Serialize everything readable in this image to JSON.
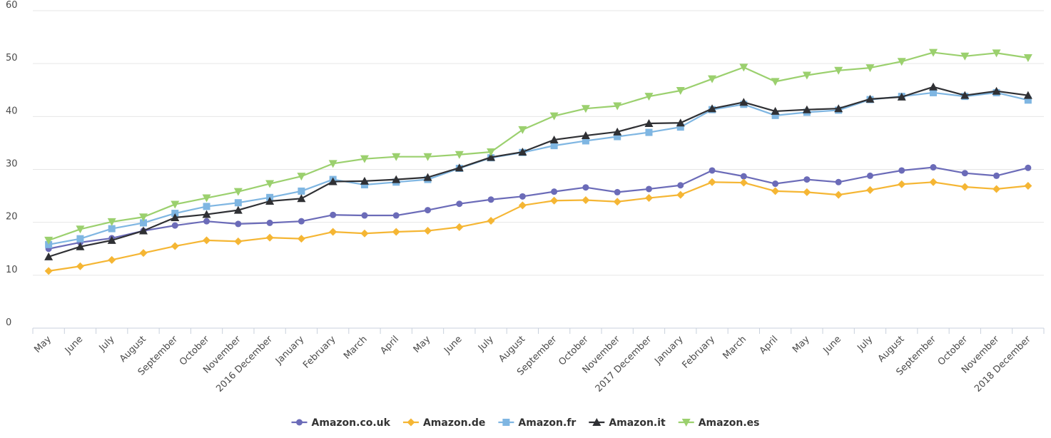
{
  "chart_data": {
    "type": "line",
    "title": "",
    "xlabel": "",
    "ylabel": "",
    "ylim": [
      0,
      60
    ],
    "yticks": [
      0,
      10,
      20,
      30,
      40,
      50,
      60
    ],
    "grid": true,
    "legend_position": "bottom",
    "categories": [
      "May",
      "June",
      "July",
      "August",
      "September",
      "October",
      "November",
      "2016 December",
      "January",
      "February",
      "March",
      "April",
      "May",
      "June",
      "July",
      "August",
      "September",
      "October",
      "November",
      "2017 December",
      "January",
      "February",
      "March",
      "April",
      "May",
      "June",
      "July",
      "August",
      "September",
      "October",
      "November",
      "2018 December"
    ],
    "series": [
      {
        "name": "Amazon.co.uk",
        "color": "#6b6bb8",
        "marker": "circle",
        "values": [
          15.0,
          16.2,
          17.0,
          18.4,
          19.4,
          20.2,
          19.7,
          19.9,
          20.2,
          21.4,
          21.3,
          21.3,
          22.3,
          23.5,
          24.3,
          24.9,
          25.8,
          26.6,
          25.7,
          26.3,
          27.0,
          29.8,
          28.7,
          27.3,
          28.1,
          27.6,
          28.8,
          29.8,
          30.4,
          29.3,
          28.8,
          30.3
        ]
      },
      {
        "name": "Amazon.de",
        "color": "#f5b634",
        "marker": "diamond",
        "values": [
          10.8,
          11.7,
          12.9,
          14.2,
          15.5,
          16.6,
          16.4,
          17.1,
          16.9,
          18.2,
          17.9,
          18.2,
          18.4,
          19.1,
          20.3,
          23.2,
          24.1,
          24.2,
          23.9,
          24.6,
          25.2,
          27.6,
          27.5,
          25.9,
          25.7,
          25.2,
          26.1,
          27.2,
          27.6,
          26.7,
          26.3,
          26.9
        ]
      },
      {
        "name": "Amazon.fr",
        "color": "#7fb6e2",
        "marker": "square",
        "values": [
          15.8,
          16.9,
          18.8,
          19.9,
          21.7,
          23.0,
          23.7,
          24.7,
          25.9,
          28.1,
          27.1,
          27.6,
          28.1,
          30.2,
          32.2,
          33.2,
          34.5,
          35.4,
          36.2,
          37.0,
          38.0,
          41.3,
          42.3,
          40.2,
          40.8,
          41.2,
          43.2,
          43.8,
          44.5,
          43.8,
          44.5,
          43.1
        ]
      },
      {
        "name": "Amazon.it",
        "color": "#2f3034",
        "marker": "triangle",
        "values": [
          13.5,
          15.4,
          16.6,
          18.4,
          20.9,
          21.5,
          22.3,
          24.0,
          24.5,
          27.7,
          27.8,
          28.1,
          28.5,
          30.3,
          32.3,
          33.3,
          35.6,
          36.4,
          37.1,
          38.7,
          38.8,
          41.5,
          42.7,
          41.0,
          41.3,
          41.5,
          43.3,
          43.7,
          45.6,
          44.0,
          44.8,
          44.0
        ]
      },
      {
        "name": "Amazon.es",
        "color": "#9bd06e",
        "marker": "triangle-down",
        "values": [
          16.6,
          18.7,
          20.1,
          21.0,
          23.4,
          24.6,
          25.8,
          27.3,
          28.7,
          31.1,
          32.0,
          32.4,
          32.4,
          32.8,
          33.3,
          37.5,
          40.1,
          41.5,
          42.0,
          43.8,
          44.9,
          47.1,
          49.3,
          46.6,
          47.8,
          48.7,
          49.2,
          50.4,
          52.1,
          51.4,
          52.0,
          51.1
        ]
      }
    ]
  }
}
